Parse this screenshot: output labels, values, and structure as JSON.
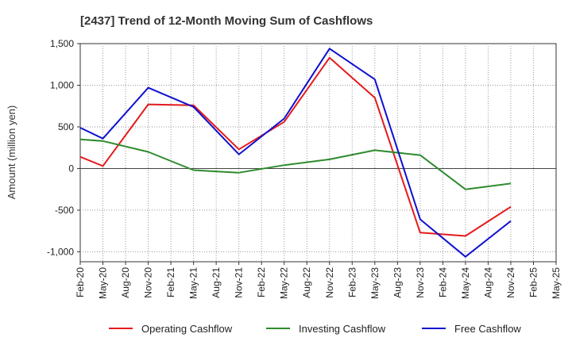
{
  "chart_data": {
    "type": "line",
    "title": "[2437]  Trend of 12-Month Moving Sum of Cashflows",
    "xlabel": "",
    "ylabel": "Amount (million yen)",
    "categories": [
      "Feb-20",
      "May-20",
      "Aug-20",
      "Nov-20",
      "Feb-21",
      "May-21",
      "Aug-21",
      "Nov-21",
      "Feb-22",
      "May-22",
      "Aug-22",
      "Nov-22",
      "Feb-23",
      "May-23",
      "Aug-23",
      "Nov-23",
      "Feb-24",
      "May-24",
      "Aug-24",
      "Nov-24",
      "Feb-25",
      "May-25"
    ],
    "yticks": [
      1500,
      1000,
      500,
      0,
      -500,
      -1000
    ],
    "ytick_labels": [
      "1,500",
      "1,000",
      "500",
      "0",
      "-500",
      "-1,000"
    ],
    "ylim": [
      -1120,
      1500
    ],
    "grid": true,
    "legend_position": "bottom",
    "series": [
      {
        "name": "Operating Cashflow",
        "color": "#e41a1c",
        "points": [
          [
            0,
            140
          ],
          [
            1,
            30
          ],
          [
            3,
            770
          ],
          [
            5,
            760
          ],
          [
            7,
            230
          ],
          [
            9,
            560
          ],
          [
            11,
            1330
          ],
          [
            13,
            850
          ],
          [
            15,
            -770
          ],
          [
            17,
            -810
          ],
          [
            19,
            -460
          ]
        ]
      },
      {
        "name": "Investing Cashflow",
        "color": "#2e8b2e",
        "points": [
          [
            0,
            350
          ],
          [
            1,
            330
          ],
          [
            3,
            200
          ],
          [
            5,
            -20
          ],
          [
            7,
            -50
          ],
          [
            9,
            40
          ],
          [
            11,
            110
          ],
          [
            13,
            220
          ],
          [
            15,
            160
          ],
          [
            17,
            -250
          ],
          [
            19,
            -180
          ]
        ]
      },
      {
        "name": "Free Cashflow",
        "color": "#1010d0",
        "points": [
          [
            0,
            490
          ],
          [
            1,
            360
          ],
          [
            3,
            970
          ],
          [
            5,
            740
          ],
          [
            7,
            170
          ],
          [
            9,
            600
          ],
          [
            11,
            1440
          ],
          [
            13,
            1070
          ],
          [
            15,
            -610
          ],
          [
            17,
            -1060
          ],
          [
            19,
            -630
          ]
        ]
      }
    ]
  }
}
